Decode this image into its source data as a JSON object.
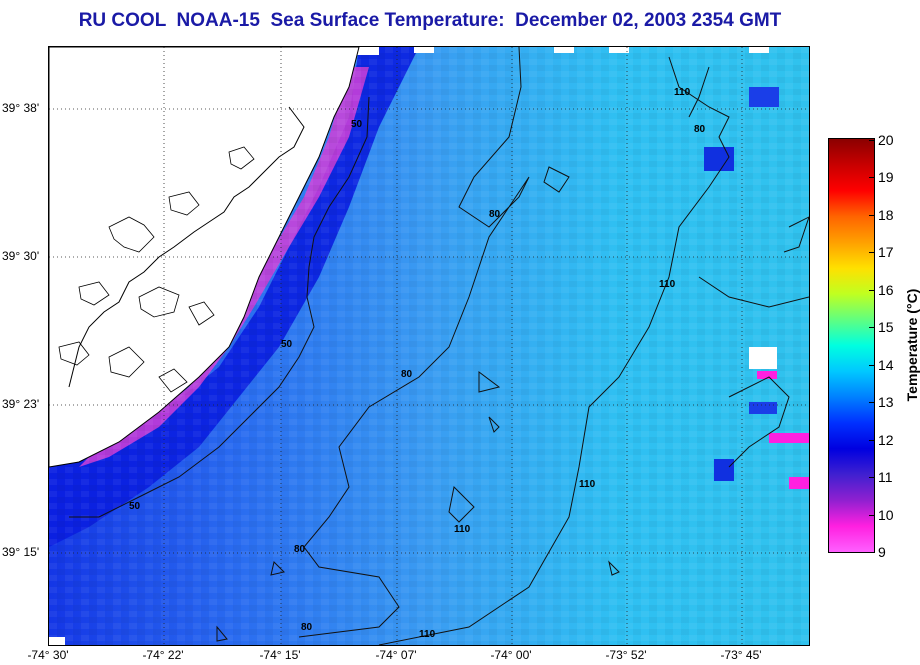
{
  "title": "RU COOL  NOAA-15  Sea Surface Temperature:  December 02, 2003 2354 GMT",
  "lon_labels": [
    "-74° 30'",
    "-74° 22'",
    "-74° 15'",
    "-74° 07'",
    "-74° 00'",
    "-73° 52'",
    "-73° 45'"
  ],
  "lat_labels": [
    "39° 38'",
    "39° 30'",
    "39° 23'",
    "39° 15'"
  ],
  "colorbar": {
    "title": "Temperature (°C)",
    "ticks": [
      "20",
      "19",
      "18",
      "17",
      "16",
      "15",
      "14",
      "13",
      "12",
      "11",
      "10",
      "9"
    ],
    "colors": [
      "#8b0000",
      "#c80000",
      "#ff0000",
      "#ff6400",
      "#ffa000",
      "#ffe000",
      "#c0ff20",
      "#60ff80",
      "#00ffe0",
      "#00c8ff",
      "#0080ff",
      "#0030ff",
      "#0000e0",
      "#4020d0",
      "#9020d0",
      "#ff20e0",
      "#ff60ff"
    ]
  },
  "contour_labels": [
    "50",
    "80",
    "110"
  ],
  "colors": {
    "title": "#1a1aa6",
    "land": "#ffffff",
    "water": "#34a6f0"
  }
}
